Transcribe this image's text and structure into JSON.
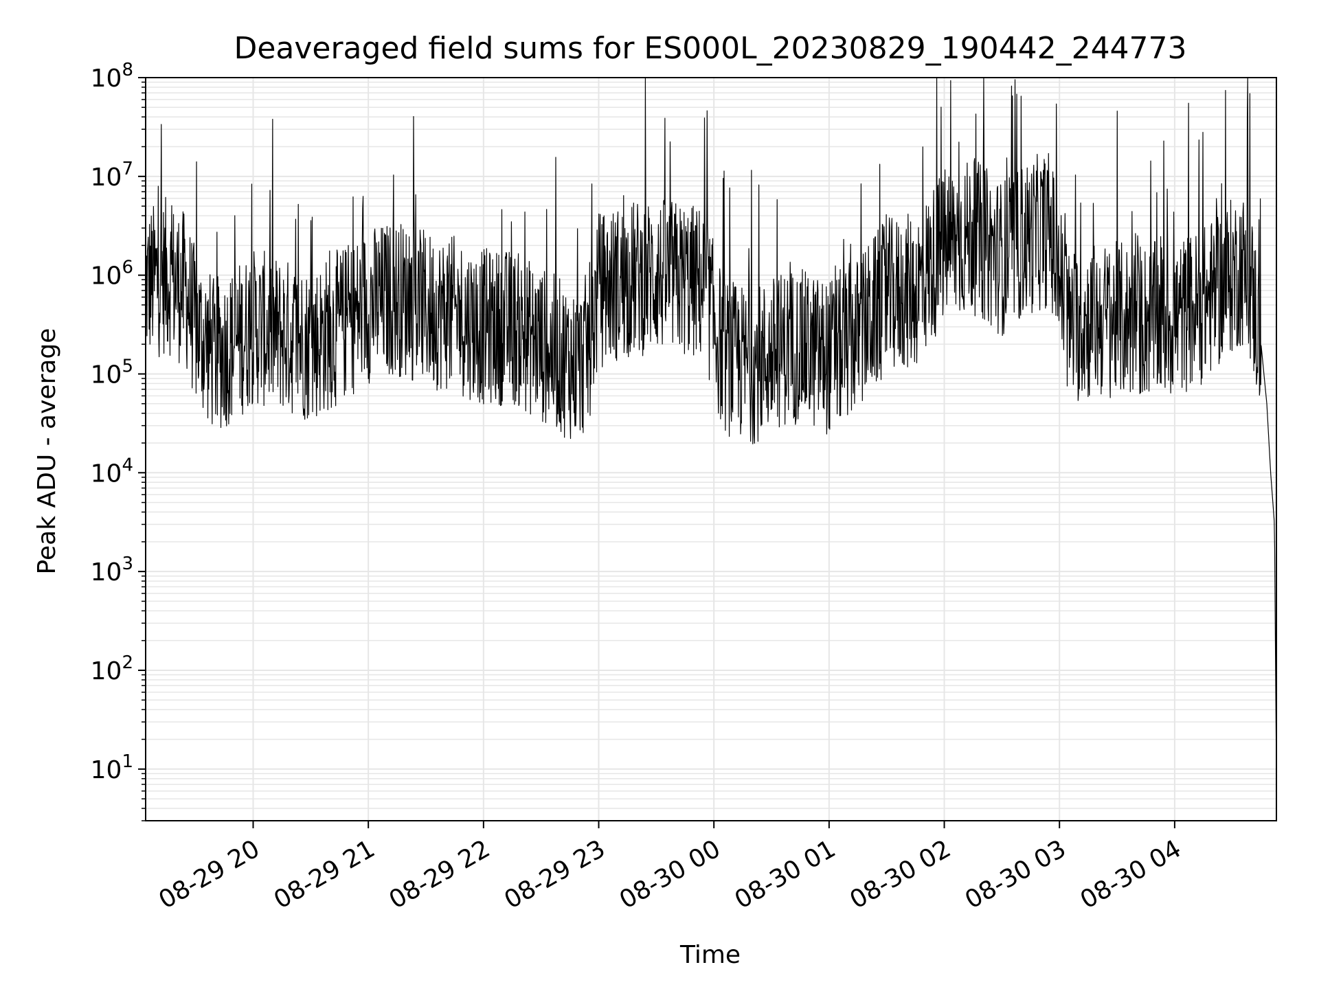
{
  "chart_data": {
    "type": "line",
    "title": "Deaveraged field sums for ES000L_20230829_190442_244773",
    "xlabel": "Time",
    "ylabel": "Peak ADU - average",
    "yscale": "log",
    "ylim": [
      3,
      100000000
    ],
    "xlim": [
      "2023-08-29 19:04",
      "2023-08-30 04:53"
    ],
    "grid": true,
    "line_color": "#000000",
    "grid_color": "#e6e6e6",
    "x_ticks": [
      {
        "time": "2023-08-29 20:00",
        "label": "08-29 20"
      },
      {
        "time": "2023-08-29 21:00",
        "label": "08-29 21"
      },
      {
        "time": "2023-08-29 22:00",
        "label": "08-29 22"
      },
      {
        "time": "2023-08-29 23:00",
        "label": "08-29 23"
      },
      {
        "time": "2023-08-30 00:00",
        "label": "08-30 00"
      },
      {
        "time": "2023-08-30 01:00",
        "label": "08-30 01"
      },
      {
        "time": "2023-08-30 02:00",
        "label": "08-30 02"
      },
      {
        "time": "2023-08-30 03:00",
        "label": "08-30 03"
      },
      {
        "time": "2023-08-30 04:00",
        "label": "08-30 04"
      }
    ],
    "y_ticks": [
      {
        "value": 10,
        "base": "10",
        "exp": "1"
      },
      {
        "value": 100,
        "base": "10",
        "exp": "2"
      },
      {
        "value": 1000,
        "base": "10",
        "exp": "3"
      },
      {
        "value": 10000,
        "base": "10",
        "exp": "4"
      },
      {
        "value": 100000,
        "base": "10",
        "exp": "5"
      },
      {
        "value": 1000000,
        "base": "10",
        "exp": "6"
      },
      {
        "value": 10000000,
        "base": "10",
        "exp": "7"
      },
      {
        "value": 100000000,
        "base": "10",
        "exp": "8"
      }
    ],
    "series": [
      {
        "x": [
          "2023-08-29 19:04",
          "2023-08-29 19:15",
          "2023-08-29 19:25",
          "2023-08-29 19:30",
          "2023-08-29 19:40",
          "2023-08-29 19:50",
          "2023-08-29 20:00",
          "2023-08-29 20:15",
          "2023-08-29 20:30",
          "2023-08-29 20:45",
          "2023-08-29 21:00",
          "2023-08-29 21:15",
          "2023-08-29 21:30",
          "2023-08-29 21:45",
          "2023-08-29 22:00",
          "2023-08-29 22:15",
          "2023-08-29 22:30",
          "2023-08-29 22:40",
          "2023-08-29 22:50",
          "2023-08-29 22:55",
          "2023-08-29 23:00",
          "2023-08-29 23:15",
          "2023-08-29 23:30",
          "2023-08-29 23:45",
          "2023-08-29 23:55",
          "2023-08-30 00:05",
          "2023-08-30 00:20",
          "2023-08-30 00:40",
          "2023-08-30 01:00",
          "2023-08-30 01:15",
          "2023-08-30 01:30",
          "2023-08-30 01:45",
          "2023-08-30 02:00",
          "2023-08-30 02:15",
          "2023-08-30 02:30",
          "2023-08-30 02:45",
          "2023-08-30 02:55",
          "2023-08-30 03:05",
          "2023-08-30 03:20",
          "2023-08-30 03:40",
          "2023-08-30 04:00",
          "2023-08-30 04:15",
          "2023-08-30 04:25",
          "2023-08-30 04:35",
          "2023-08-30 04:40",
          "2023-08-30 04:45",
          "2023-08-30 04:48",
          "2023-08-30 04:50",
          "2023-08-30 04:52",
          "2023-08-30 04:53"
        ],
        "y": [
          800000,
          1000000,
          700000,
          300000,
          150000,
          200000,
          300000,
          250000,
          200000,
          300000,
          500000,
          600000,
          450000,
          400000,
          300000,
          300000,
          200000,
          150000,
          120000,
          200000,
          700000,
          900000,
          1000000,
          900000,
          800000,
          150000,
          120000,
          200000,
          150000,
          250000,
          600000,
          700000,
          2000000,
          2500000,
          1500000,
          2500000,
          3000000,
          300000,
          350000,
          350000,
          350000,
          500000,
          800000,
          1200000,
          700000,
          200000,
          50000,
          10000,
          3000,
          8
        ]
      }
    ]
  }
}
